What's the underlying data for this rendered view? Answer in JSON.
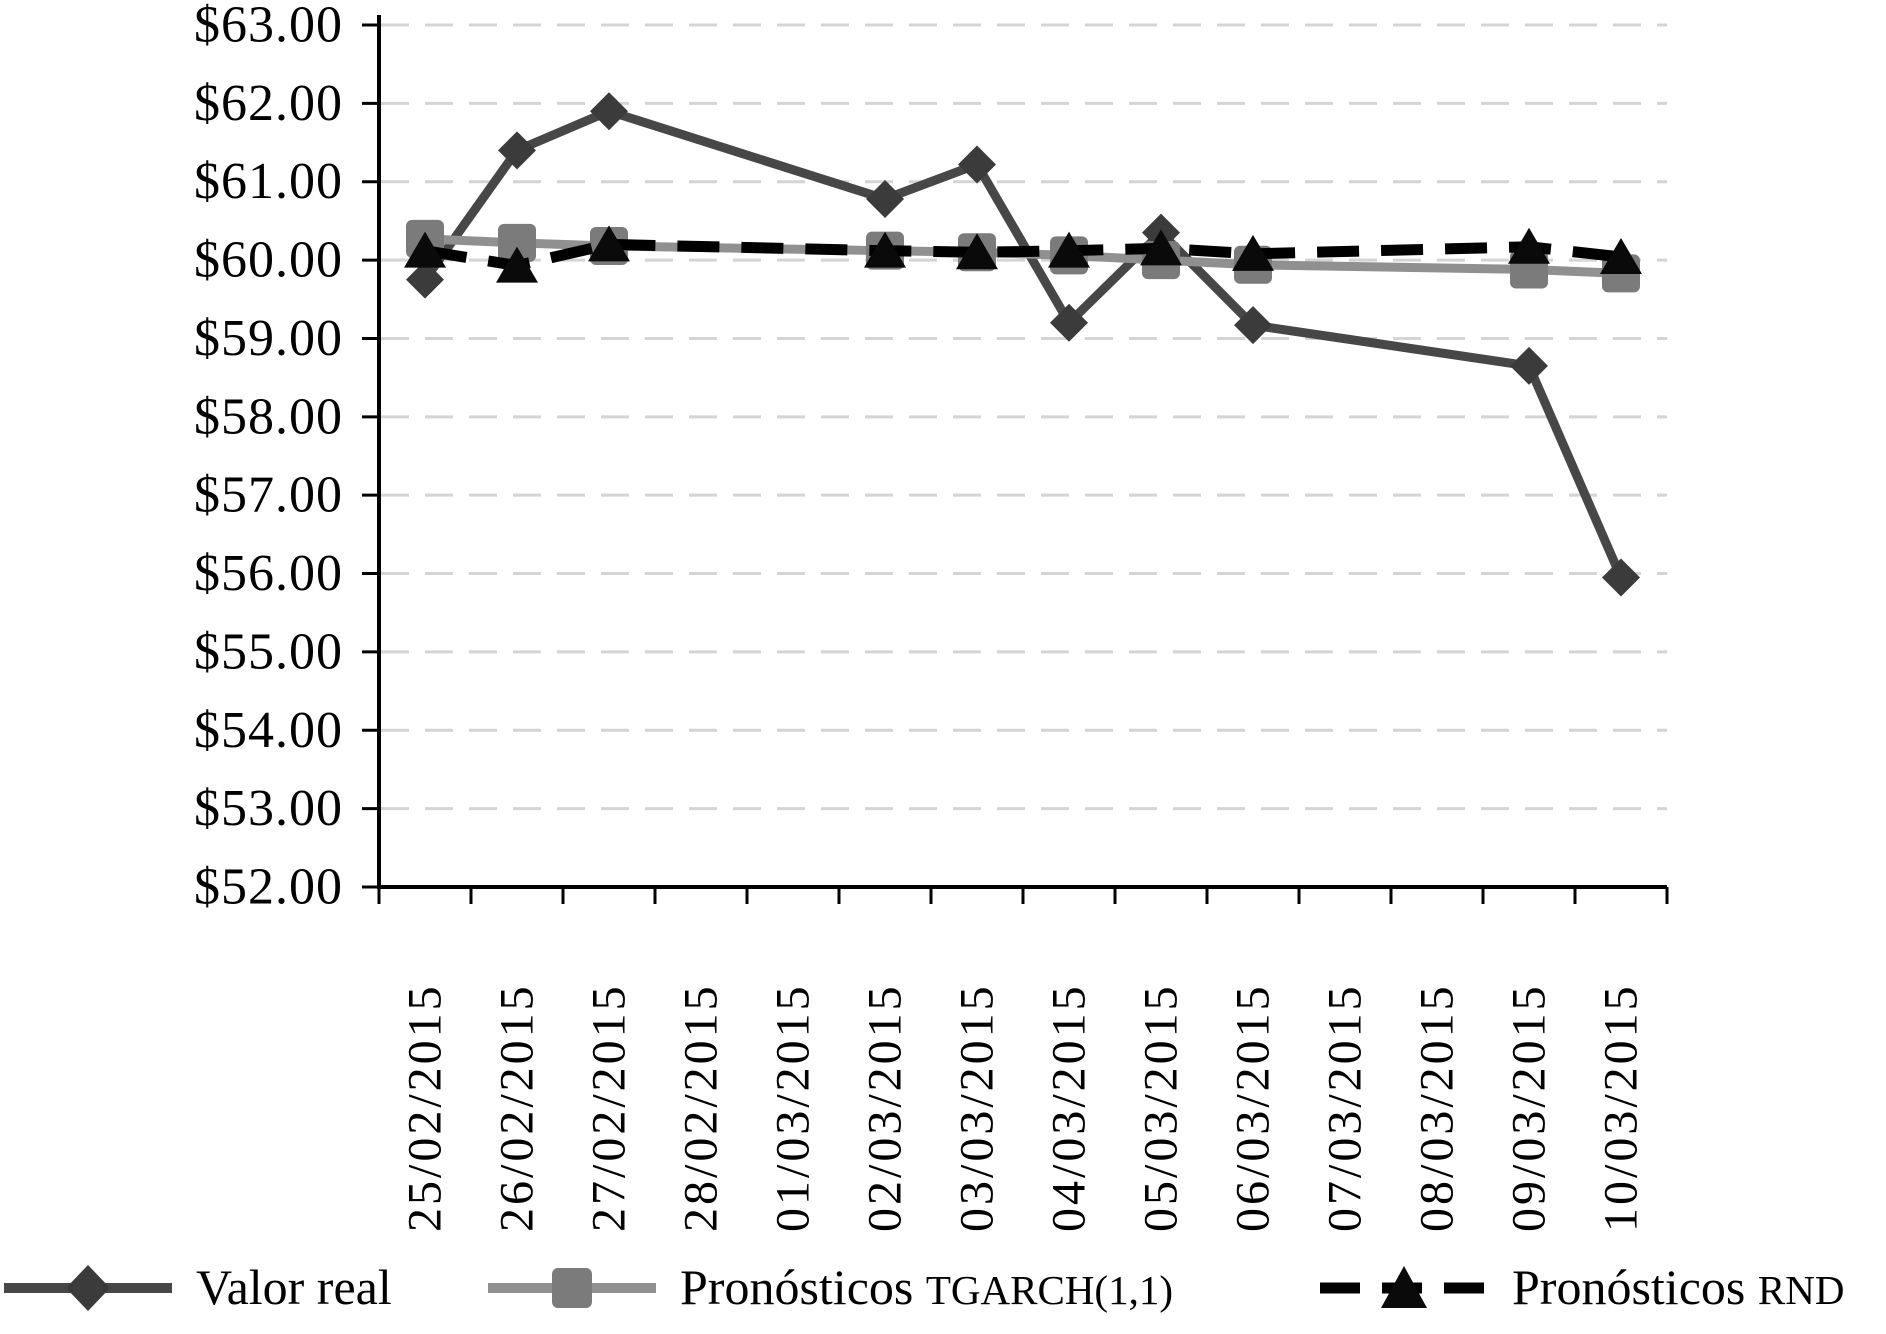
{
  "chart_data": {
    "type": "line",
    "title": "",
    "categories": [
      "25/02/2015",
      "26/02/2015",
      "27/02/2015",
      "28/02/2015",
      "01/03/2015",
      "02/03/2015",
      "03/03/2015",
      "04/03/2015",
      "05/03/2015",
      "06/03/2015",
      "07/03/2015",
      "08/03/2015",
      "09/03/2015",
      "10/03/2015"
    ],
    "series": [
      {
        "name": "Valor real",
        "legend_prefix": "Valor real",
        "legend_caps": "",
        "marker": "diamond",
        "line_style": "solid",
        "line_color": "#474747",
        "marker_color": "#3b3b3b",
        "values": [
          59.75,
          61.4,
          61.9,
          null,
          null,
          60.78,
          61.22,
          59.2,
          60.35,
          59.17,
          null,
          null,
          58.65,
          55.95
        ]
      },
      {
        "name": "Pronósticos TGARCH(1,1)",
        "legend_prefix": "Pronósticos ",
        "legend_caps": "TGARCH(1,1)",
        "marker": "square",
        "line_style": "solid",
        "line_color": "#909090",
        "marker_color": "#7b7b7b",
        "values": [
          60.27,
          60.22,
          60.18,
          null,
          null,
          60.12,
          60.1,
          60.06,
          60.0,
          59.94,
          null,
          null,
          59.88,
          59.83
        ]
      },
      {
        "name": "Pronósticos RND",
        "legend_prefix": "Pronósticos ",
        "legend_caps": "RND",
        "marker": "triangle",
        "line_style": "dashed",
        "line_color": "#000000",
        "marker_color": "#0a0a0a",
        "values": [
          60.12,
          59.93,
          60.2,
          null,
          null,
          60.12,
          60.1,
          60.12,
          60.15,
          60.08,
          null,
          null,
          60.17,
          60.04
        ]
      }
    ],
    "y_axis": {
      "min": 52,
      "max": 63,
      "step": 1,
      "tick_labels": [
        "$52.00",
        "$53.00",
        "$54.00",
        "$55.00",
        "$56.00",
        "$57.00",
        "$58.00",
        "$59.00",
        "$60.00",
        "$61.00",
        "$62.00",
        "$63.00"
      ]
    },
    "x_axis": {
      "tick_label_rotation_deg": -90
    },
    "legend_position": "bottom",
    "grid": "horizontal-dashed",
    "colors": {
      "gridline": "#d4d4d4",
      "axis": "#000000",
      "background": "#ffffff"
    }
  }
}
